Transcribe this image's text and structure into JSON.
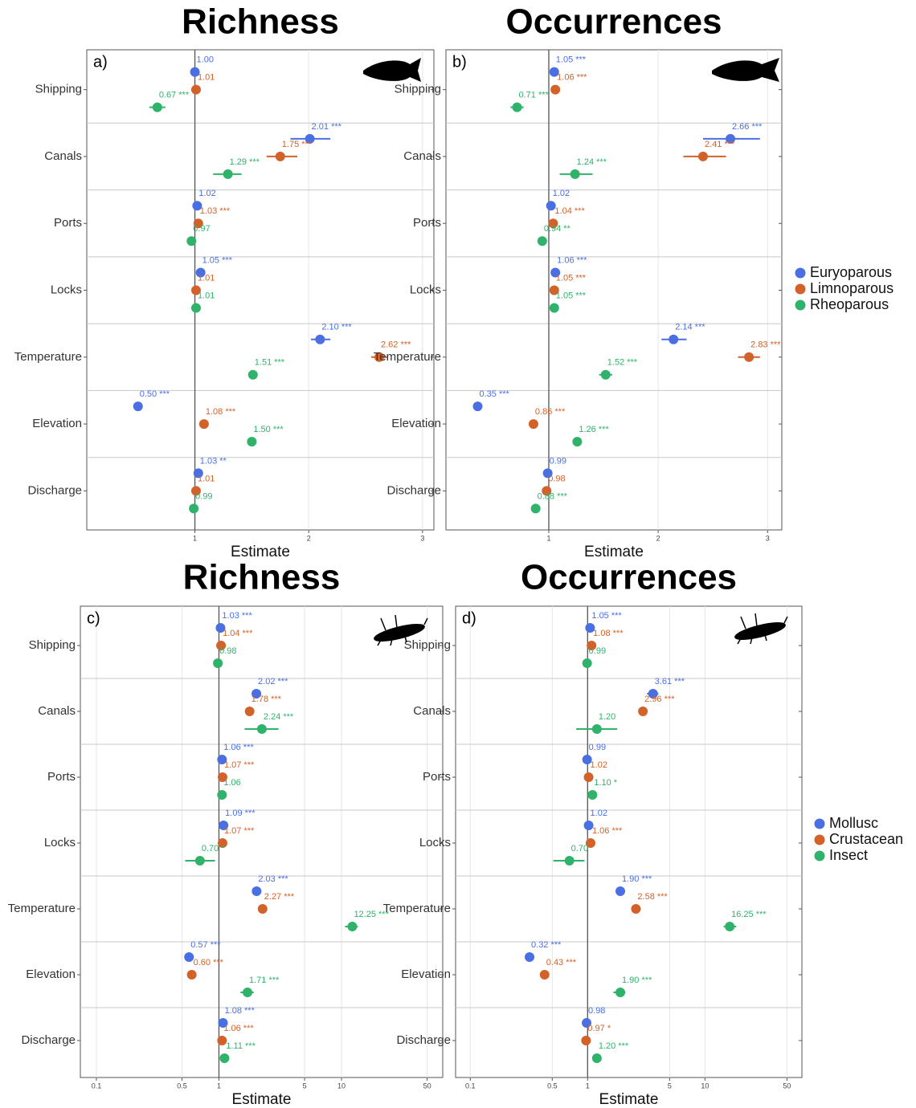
{
  "chart_data": [
    {
      "type": "dot",
      "title": "Richness",
      "panel_label": "a)",
      "xlabel": "Estimate",
      "categories": [
        "Shipping",
        "Canals",
        "Ports",
        "Locks",
        "Temperature",
        "Elevation",
        "Discharge"
      ],
      "xlim": [
        0.05,
        3.1
      ],
      "xticks": [
        1,
        2,
        3
      ],
      "log_x": false,
      "grid": true,
      "reference_line": 1,
      "series": [
        {
          "name": "Euryoparous",
          "color": "#4a6fe3",
          "values": [
            1.0,
            2.01,
            1.02,
            1.05,
            2.1,
            0.5,
            1.03
          ],
          "value_labels": [
            "1.00",
            "2.01 ***",
            "1.02",
            "1.05 ***",
            "2.10 ***",
            "0.50 ***",
            "1.03 **"
          ],
          "ci_low": [
            null,
            1.84,
            null,
            null,
            2.02,
            null,
            null
          ],
          "ci_high": [
            null,
            2.19,
            null,
            null,
            2.19,
            null,
            null
          ]
        },
        {
          "name": "Limnoparous",
          "color": "#d2622a",
          "values": [
            1.01,
            1.75,
            1.03,
            1.01,
            2.62,
            1.08,
            1.01
          ],
          "value_labels": [
            "1.01",
            "1.75 ***",
            "1.03 ***",
            "1.01",
            "2.62 ***",
            "1.08 ***",
            "1.01"
          ],
          "ci_low": [
            null,
            1.63,
            null,
            null,
            2.55,
            null,
            null
          ],
          "ci_high": [
            null,
            1.9,
            null,
            null,
            2.69,
            null,
            null
          ]
        },
        {
          "name": "Rheoparous",
          "color": "#2fb36b",
          "values": [
            0.67,
            1.29,
            0.97,
            1.01,
            1.51,
            1.5,
            0.99
          ],
          "value_labels": [
            "0.67 ***",
            "1.29 ***",
            "0.97",
            "1.01",
            "1.51 ***",
            "1.50 ***",
            "0.99"
          ],
          "ci_low": [
            0.6,
            1.16,
            null,
            null,
            null,
            null,
            null
          ],
          "ci_high": [
            0.74,
            1.41,
            null,
            null,
            null,
            null,
            null
          ]
        }
      ]
    },
    {
      "type": "dot",
      "title": "Occurrences",
      "panel_label": "b)",
      "xlabel": "Estimate",
      "legend": "right",
      "categories": [
        "Shipping",
        "Canals",
        "Ports",
        "Locks",
        "Temperature",
        "Elevation",
        "Discharge"
      ],
      "xlim": [
        0.06,
        3.13
      ],
      "xticks": [
        1,
        2,
        3
      ],
      "log_x": false,
      "grid": true,
      "reference_line": 1,
      "series": [
        {
          "name": "Euryoparous",
          "color": "#4a6fe3",
          "values": [
            1.05,
            2.66,
            1.02,
            1.06,
            2.14,
            0.35,
            0.99
          ],
          "value_labels": [
            "1.05 ***",
            "2.66 ***",
            "1.02",
            "1.06 ***",
            "2.14 ***",
            "0.35 ***",
            "0.99"
          ],
          "ci_low": [
            null,
            2.41,
            null,
            null,
            2.03,
            null,
            null
          ],
          "ci_high": [
            null,
            2.93,
            null,
            null,
            2.26,
            null,
            null
          ]
        },
        {
          "name": "Limnoparous",
          "color": "#d2622a",
          "values": [
            1.06,
            2.41,
            1.04,
            1.05,
            2.83,
            0.86,
            0.98
          ],
          "value_labels": [
            "1.06 ***",
            "2.41 ***",
            "1.04 ***",
            "1.05 ***",
            "2.83 ***",
            "0.86 ***",
            "0.98"
          ],
          "ci_low": [
            null,
            2.23,
            null,
            null,
            2.73,
            null,
            null
          ],
          "ci_high": [
            null,
            2.62,
            null,
            null,
            2.93,
            null,
            null
          ]
        },
        {
          "name": "Rheoparous",
          "color": "#2fb36b",
          "values": [
            0.71,
            1.24,
            0.94,
            1.05,
            1.52,
            1.26,
            0.88
          ],
          "value_labels": [
            "0.71 ***",
            "1.24 ***",
            "0.94 **",
            "1.05 ***",
            "1.52 ***",
            "1.26 ***",
            "0.88 ***"
          ],
          "ci_low": [
            0.65,
            1.1,
            null,
            null,
            1.46,
            null,
            null
          ],
          "ci_high": [
            0.77,
            1.4,
            null,
            null,
            1.58,
            null,
            null
          ]
        }
      ]
    },
    {
      "type": "dot",
      "title": "Richness",
      "panel_label": "c)",
      "xlabel": "Estimate",
      "categories": [
        "Shipping",
        "Canals",
        "Ports",
        "Locks",
        "Temperature",
        "Elevation",
        "Discharge"
      ],
      "xlim": [
        0.074,
        67
      ],
      "xticks": [
        0.1,
        0.5,
        1,
        5,
        10,
        50
      ],
      "log_x": true,
      "grid": true,
      "reference_line": 1,
      "series": [
        {
          "name": "Mollusc",
          "color": "#4a6fe3",
          "values": [
            1.03,
            2.02,
            1.06,
            1.09,
            2.03,
            0.57,
            1.08
          ],
          "value_labels": [
            "1.03 ***",
            "2.02 ***",
            "1.06 ***",
            "1.09 ***",
            "2.03 ***",
            "0.57 ***",
            "1.08 ***"
          ],
          "ci_low": [
            null,
            null,
            null,
            null,
            null,
            null,
            null
          ],
          "ci_high": [
            null,
            null,
            null,
            null,
            null,
            null,
            null
          ]
        },
        {
          "name": "Crustacean",
          "color": "#d2622a",
          "values": [
            1.04,
            1.78,
            1.07,
            1.07,
            2.27,
            0.6,
            1.06
          ],
          "value_labels": [
            "1.04 ***",
            "1.78 ***",
            "1.07 ***",
            "1.07 ***",
            "2.27 ***",
            "0.60 ***",
            "1.06 ***"
          ],
          "ci_low": [
            null,
            null,
            null,
            null,
            null,
            null,
            null
          ],
          "ci_high": [
            null,
            null,
            null,
            null,
            null,
            null,
            null
          ]
        },
        {
          "name": "Insect",
          "color": "#2fb36b",
          "values": [
            0.98,
            2.24,
            1.06,
            0.7,
            12.25,
            1.71,
            1.11
          ],
          "value_labels": [
            "0.98",
            "2.24 ***",
            "1.06",
            "0.70 *",
            "12.25 ***",
            "1.71 ***",
            "1.11 ***"
          ],
          "ci_low": [
            null,
            1.62,
            null,
            0.53,
            10.7,
            1.5,
            null
          ],
          "ci_high": [
            null,
            3.06,
            null,
            0.93,
            13.6,
            1.92,
            null
          ]
        }
      ]
    },
    {
      "type": "dot",
      "title": "Occurrences",
      "panel_label": "d)",
      "xlabel": "Estimate",
      "legend": "right",
      "categories": [
        "Shipping",
        "Canals",
        "Ports",
        "Locks",
        "Temperature",
        "Elevation",
        "Discharge"
      ],
      "xlim": [
        0.075,
        67
      ],
      "xticks": [
        0.1,
        0.5,
        1,
        5,
        10,
        50
      ],
      "log_x": true,
      "grid": true,
      "reference_line": 1,
      "series": [
        {
          "name": "Mollusc",
          "color": "#4a6fe3",
          "values": [
            1.05,
            3.61,
            0.99,
            1.02,
            1.9,
            0.32,
            0.98
          ],
          "value_labels": [
            "1.05 ***",
            "3.61 ***",
            "0.99",
            "1.02",
            "1.90 ***",
            "0.32 ***",
            "0.98"
          ],
          "ci_low": [
            null,
            3.21,
            null,
            null,
            null,
            null,
            null
          ],
          "ci_high": [
            null,
            4.01,
            null,
            null,
            null,
            null,
            null
          ]
        },
        {
          "name": "Crustacean",
          "color": "#d2622a",
          "values": [
            1.08,
            2.96,
            1.02,
            1.06,
            2.58,
            0.43,
            0.97
          ],
          "value_labels": [
            "1.08 ***",
            "2.96 ***",
            "1.02",
            "1.06 ***",
            "2.58 ***",
            "0.43 ***",
            "0.97 *"
          ],
          "ci_low": [
            null,
            null,
            null,
            null,
            null,
            null,
            null
          ],
          "ci_high": [
            null,
            null,
            null,
            null,
            null,
            null,
            null
          ]
        },
        {
          "name": "Insect",
          "color": "#2fb36b",
          "values": [
            0.99,
            1.2,
            1.1,
            0.7,
            16.25,
            1.9,
            1.2
          ],
          "value_labels": [
            "0.99",
            "1.20",
            "1.10 *",
            "0.70",
            "16.25 ***",
            "1.90 ***",
            "1.20 ***"
          ],
          "ci_low": [
            null,
            0.8,
            null,
            0.51,
            14.4,
            1.66,
            null
          ],
          "ci_high": [
            null,
            1.79,
            null,
            0.94,
            18.5,
            2.1,
            null
          ]
        }
      ]
    }
  ]
}
